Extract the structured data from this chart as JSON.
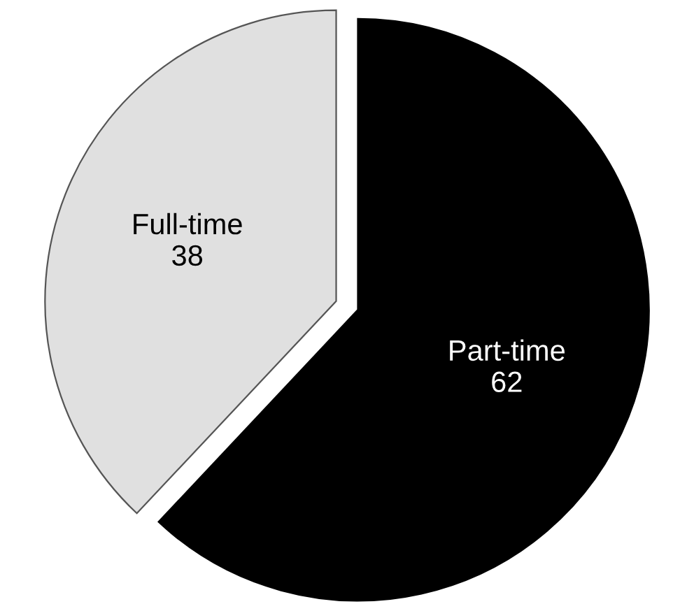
{
  "chart_data": {
    "type": "pie",
    "categories": [
      "Part-time",
      "Full-time"
    ],
    "values": [
      62,
      38
    ],
    "colors": [
      "#000000",
      "#e0e0e0"
    ],
    "data_labels": true,
    "legend": false
  }
}
